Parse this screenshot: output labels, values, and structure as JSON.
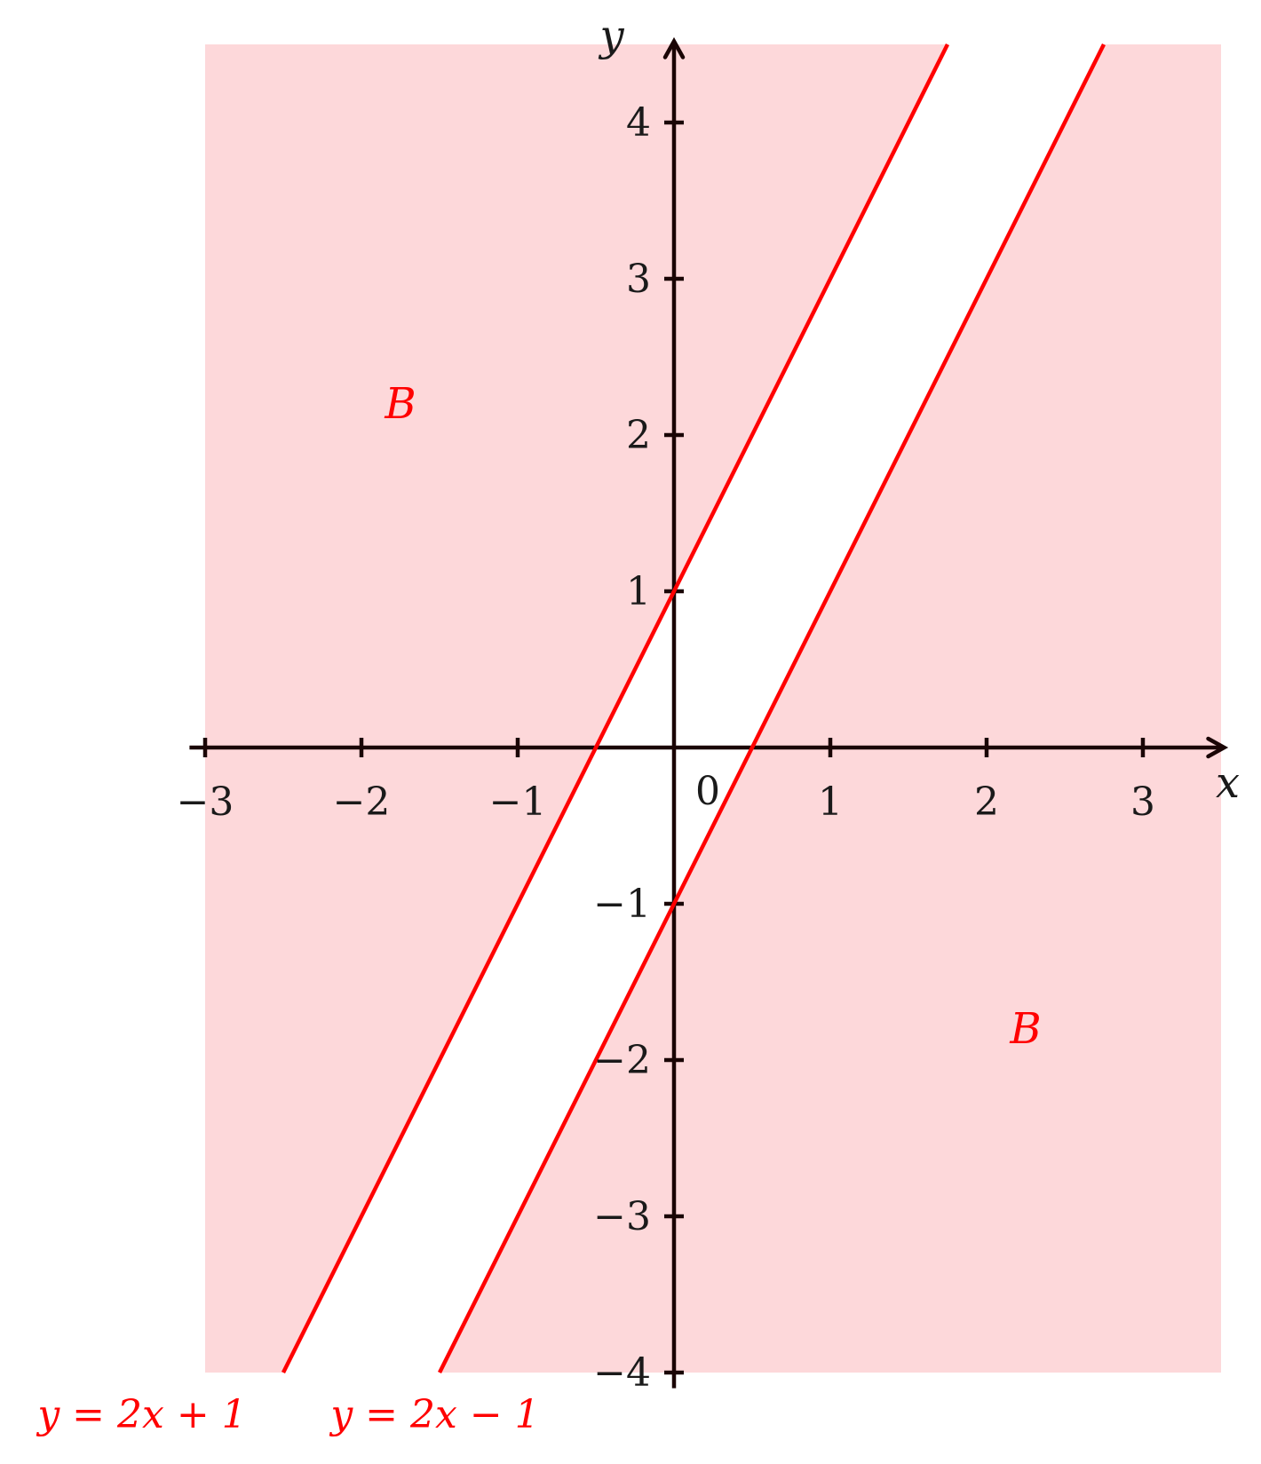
{
  "chart_data": {
    "type": "line",
    "title": "",
    "xlabel": "x",
    "ylabel": "y",
    "xlim": [
      -3,
      3.5
    ],
    "ylim": [
      -4,
      4.5
    ],
    "x_ticks": [
      -3,
      -2,
      -1,
      1,
      2,
      3
    ],
    "x_tick_labels": [
      "−3",
      "−2",
      "−1",
      "1",
      "2",
      "3"
    ],
    "y_ticks": [
      4,
      3,
      2,
      1,
      -1,
      -2,
      -3,
      -4
    ],
    "y_tick_labels": [
      "4",
      "3",
      "2",
      "1",
      "−1",
      "−2",
      "−3",
      "−4"
    ],
    "origin_label": "0",
    "shade_color": "#fdd8da",
    "line_color": "#ff0000",
    "axis_color": "#1a0505",
    "series": [
      {
        "name": "y = 2x + 1",
        "slope": 2,
        "intercept": 1
      },
      {
        "name": "y = 2x − 1",
        "slope": 2,
        "intercept": -1
      }
    ],
    "regions": [
      {
        "label": "B",
        "x": -1.75,
        "y": 2.2
      },
      {
        "label": "B",
        "x": 2.25,
        "y": -1.8
      }
    ]
  }
}
